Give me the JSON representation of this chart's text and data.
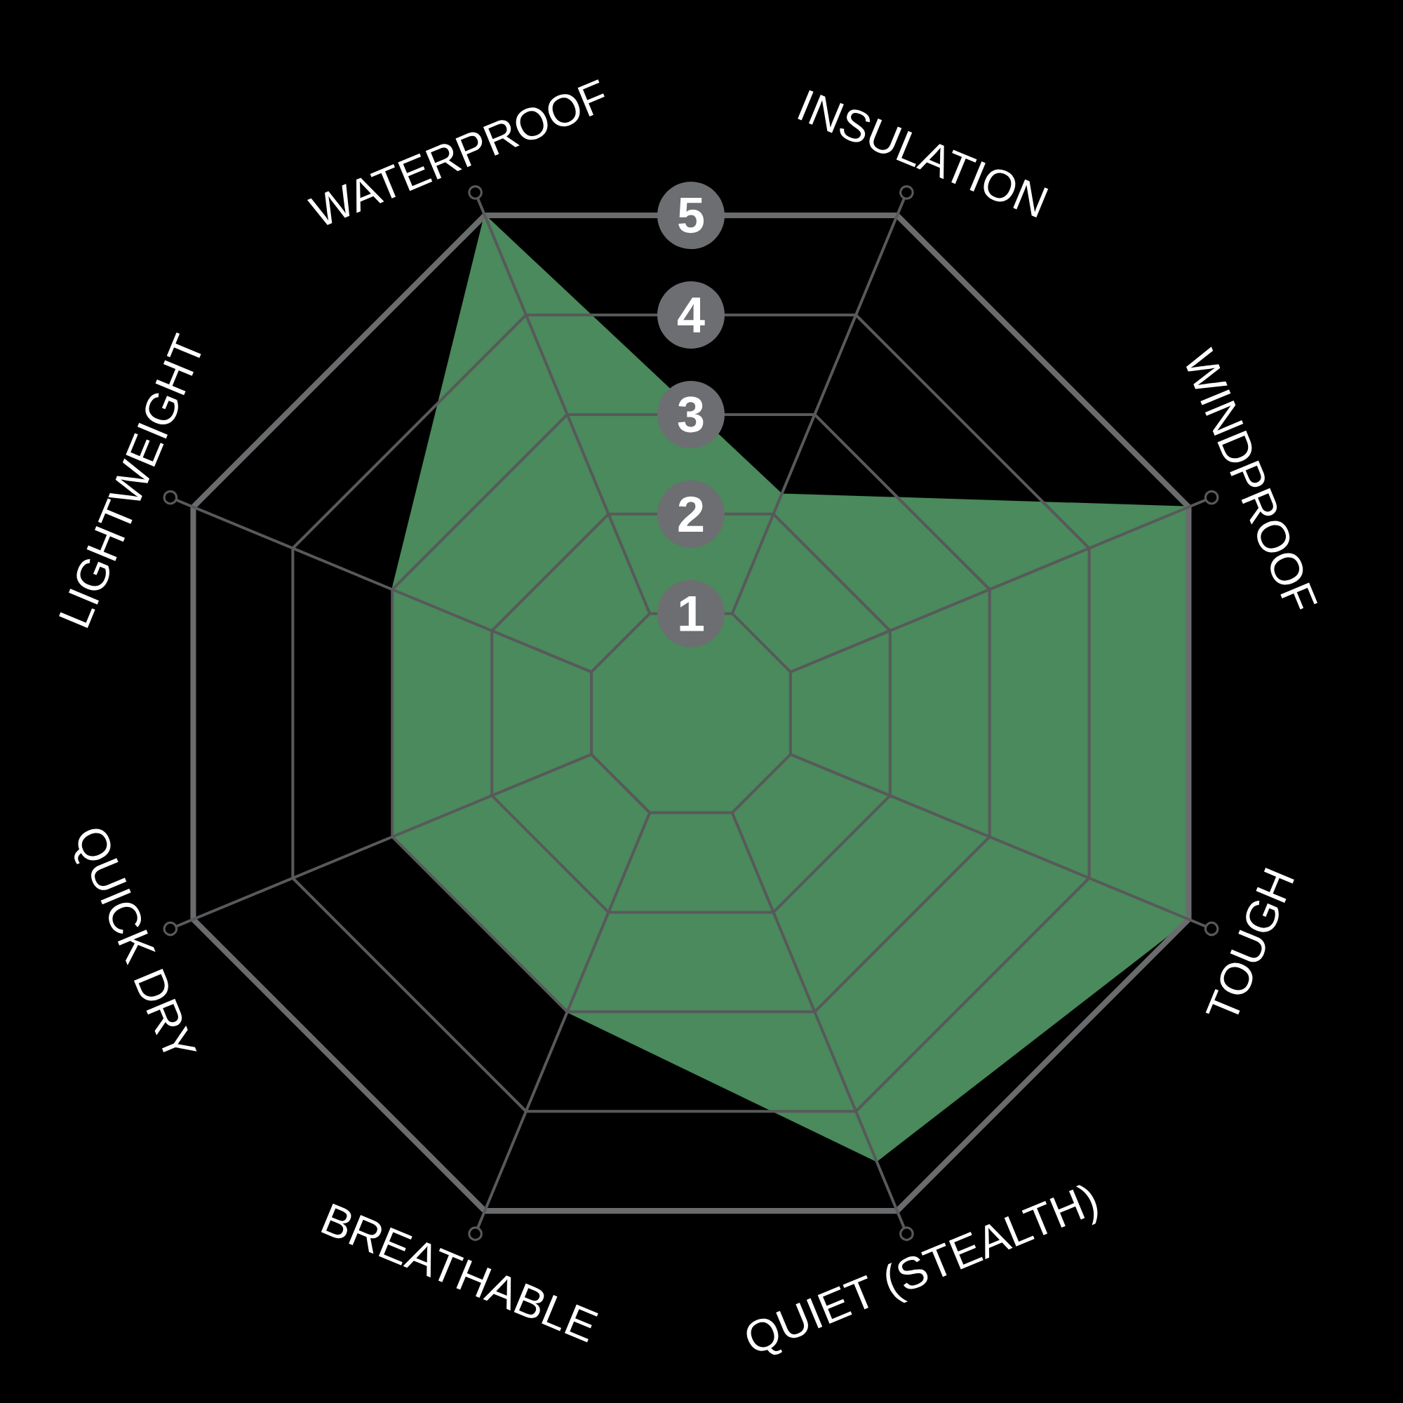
{
  "chart_data": {
    "type": "radar",
    "categories": [
      "INSULATION",
      "WINDPROOF",
      "TOUGH",
      "QUIET (STEALTH)",
      "BREATHABLE",
      "QUICK DRY",
      "LIGHTWEIGHT",
      "WATERPROOF"
    ],
    "series": [
      {
        "color": "#4a8a5c",
        "values": [
          2.2,
          5,
          5,
          4.5,
          3,
          3,
          3,
          5
        ]
      }
    ],
    "ylim": [
      0,
      5
    ],
    "yticks": [
      1,
      2,
      3,
      4,
      5
    ],
    "grid": true
  }
}
